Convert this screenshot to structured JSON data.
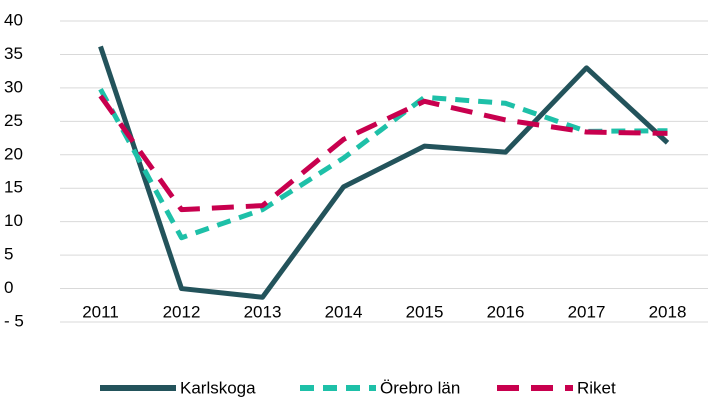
{
  "chart_data": {
    "type": "line",
    "categories": [
      "2011",
      "2012",
      "2013",
      "2014",
      "2015",
      "2016",
      "2017",
      "2018"
    ],
    "series": [
      {
        "name": "Karlskoga",
        "color": "#23535b",
        "values": [
          36.2,
          0,
          -1.3,
          15.2,
          21.3,
          20.4,
          33,
          21.8
        ]
      },
      {
        "name": "Örebro län",
        "color": "#1ec0a8",
        "values": [
          29.8,
          7.6,
          11.8,
          19.5,
          28.6,
          27.7,
          23.5,
          23.6
        ]
      },
      {
        "name": "Riket",
        "color": "#c8004e",
        "values": [
          28.8,
          11.8,
          12.4,
          22.3,
          28,
          25.2,
          23.4,
          23.2
        ]
      }
    ],
    "ylim": [
      -5,
      40
    ],
    "yticks": [
      {
        "value": -5,
        "label": "- 5"
      },
      0,
      5,
      10,
      15,
      20,
      25,
      30,
      35,
      40
    ],
    "grid": true,
    "legend": "bottom"
  }
}
